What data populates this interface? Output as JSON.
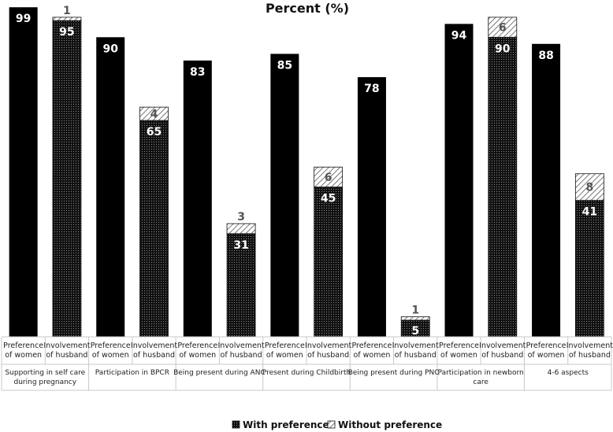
{
  "chart_data": {
    "type": "bar",
    "title": "Percent (%)",
    "ylim": [
      0,
      100
    ],
    "colors": {
      "with_preference": "#000000",
      "without_preference": "#ffffff",
      "hatch": "#555555",
      "grid": "#c8c8c8"
    },
    "groups": [
      {
        "label_lines": [
          "Supporting in self care",
          "during pregnancy"
        ],
        "women": 99,
        "husband_with": 95,
        "husband_without": 1
      },
      {
        "label_lines": [
          "Participation in BPCR"
        ],
        "women": 90,
        "husband_with": 65,
        "husband_without": 4
      },
      {
        "label_lines": [
          "Being present during ANC"
        ],
        "women": 83,
        "husband_with": 31,
        "husband_without": 3
      },
      {
        "label_lines": [
          "Present during Childbirth"
        ],
        "women": 85,
        "husband_with": 45,
        "husband_without": 6
      },
      {
        "label_lines": [
          "Being present during PNC"
        ],
        "women": 78,
        "husband_with": 5,
        "husband_without": 1
      },
      {
        "label_lines": [
          "Participation in newborn",
          "care"
        ],
        "women": 94,
        "husband_with": 90,
        "husband_without": 6
      },
      {
        "label_lines": [
          "4-6 aspects"
        ],
        "women": 88,
        "husband_with": 41,
        "husband_without": 8
      }
    ],
    "sub_categories": [
      [
        "Preference",
        "of women"
      ],
      [
        "Involvement",
        "of husband"
      ]
    ],
    "legend": {
      "position": "bottom",
      "items": [
        {
          "key": "with_preference",
          "label": "With preference"
        },
        {
          "key": "without_preference",
          "label": "Without preference"
        }
      ]
    }
  }
}
